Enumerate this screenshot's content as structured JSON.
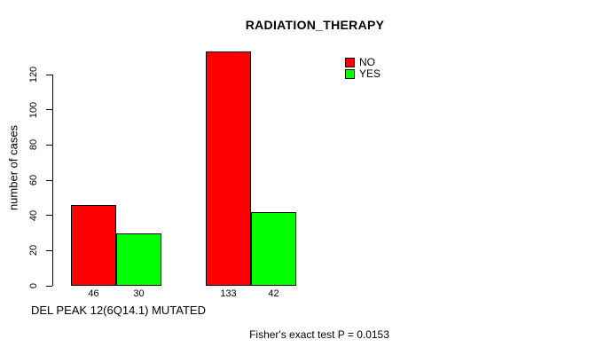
{
  "chart_data": {
    "type": "bar",
    "title": "RADIATION_THERAPY",
    "ylabel": "number of cases",
    "xlabel": "DEL PEAK 12(6Q14.1) MUTATED",
    "footnote": "Fisher's exact test P = 0.0153",
    "yticks": [
      0,
      20,
      40,
      60,
      80,
      100,
      120
    ],
    "ylim": [
      0,
      133
    ],
    "grid": false,
    "bar_border_color": "#000000",
    "background_color": "#ffffff",
    "groups": 2,
    "series": [
      {
        "name": "NO",
        "color": "#ff0000",
        "values": [
          46,
          133
        ]
      },
      {
        "name": "YES",
        "color": "#00ff00",
        "values": [
          30,
          42
        ]
      }
    ],
    "bar_value_labels": [
      "46",
      "30",
      "133",
      "42"
    ],
    "legend": {
      "position": "top-right",
      "entries": [
        {
          "label": "NO",
          "color": "#ff0000"
        },
        {
          "label": "YES",
          "color": "#00ff00"
        }
      ]
    }
  }
}
